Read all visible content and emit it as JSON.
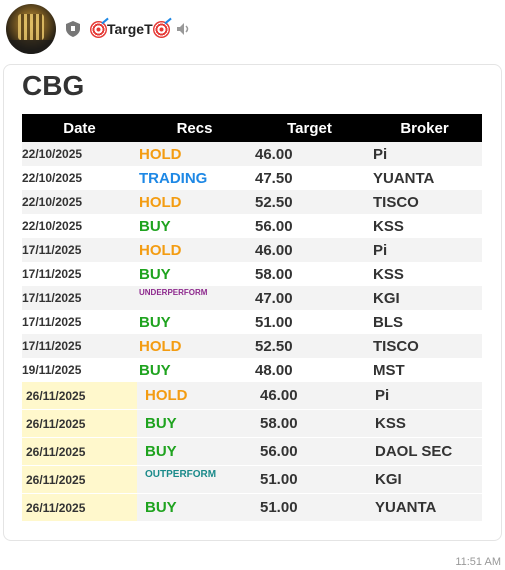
{
  "header": {
    "channel_name": "TargeT",
    "icons": [
      "avatar",
      "shield-icon",
      "target-icon",
      "target-icon",
      "mute-icon"
    ]
  },
  "message": {
    "stock": "CBG",
    "time": "11:51 AM",
    "table": {
      "columns": [
        "Date",
        "Recs",
        "Target",
        "Broker"
      ],
      "rows": [
        {
          "date": "22/10/2025",
          "rec": "HOLD",
          "target": "46.00",
          "broker": "Pi"
        },
        {
          "date": "22/10/2025",
          "rec": "TRADING",
          "target": "47.50",
          "broker": "YUANTA"
        },
        {
          "date": "22/10/2025",
          "rec": "HOLD",
          "target": "52.50",
          "broker": "TISCO"
        },
        {
          "date": "22/10/2025",
          "rec": "BUY",
          "target": "56.00",
          "broker": "KSS"
        },
        {
          "date": "17/11/2025",
          "rec": "HOLD",
          "target": "46.00",
          "broker": "Pi"
        },
        {
          "date": "17/11/2025",
          "rec": "BUY",
          "target": "58.00",
          "broker": "KSS"
        },
        {
          "date": "17/11/2025",
          "rec": "UNDERPERFORM",
          "target": "47.00",
          "broker": "KGI"
        },
        {
          "date": "17/11/2025",
          "rec": "BUY",
          "target": "51.00",
          "broker": "BLS"
        },
        {
          "date": "17/11/2025",
          "rec": "HOLD",
          "target": "52.50",
          "broker": "TISCO"
        },
        {
          "date": "19/11/2025",
          "rec": "BUY",
          "target": "48.00",
          "broker": "MST"
        }
      ],
      "new_rows": [
        {
          "date": "26/11/2025",
          "rec": "HOLD",
          "target": "46.00",
          "broker": "Pi"
        },
        {
          "date": "26/11/2025",
          "rec": "BUY",
          "target": "58.00",
          "broker": "KSS"
        },
        {
          "date": "26/11/2025",
          "rec": "BUY",
          "target": "56.00",
          "broker": "DAOL SEC"
        },
        {
          "date": "26/11/2025",
          "rec": "OUTPERFORM",
          "target": "51.00",
          "broker": "KGI"
        },
        {
          "date": "26/11/2025",
          "rec": "BUY",
          "target": "51.00",
          "broker": "YUANTA"
        }
      ]
    }
  },
  "colors": {
    "hold": "#f39c12",
    "trading": "#1e88e5",
    "buy": "#1fa31f",
    "underperform": "#8e2a8e",
    "outperform": "#1a8a8a",
    "new_row_highlight": "#fff8cc"
  }
}
